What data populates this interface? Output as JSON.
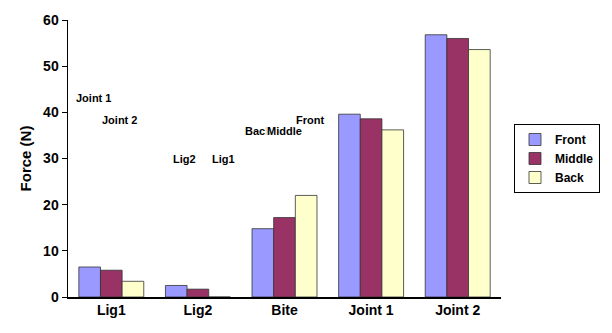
{
  "chart_data": {
    "type": "bar",
    "y_label": "Force (N)",
    "categories": [
      "Lig1",
      "Lig2",
      "Bite",
      "Joint 1",
      "Joint 2"
    ],
    "series": [
      {
        "name": "Front",
        "color": "#9999ff",
        "values": [
          6.5,
          2.5,
          14.8,
          39.6,
          56.8
        ]
      },
      {
        "name": "Middle",
        "color": "#993366",
        "values": [
          5.8,
          1.7,
          17.2,
          38.6,
          56.0
        ]
      },
      {
        "name": "Back",
        "color": "#ffffcc",
        "values": [
          3.4,
          0,
          22.0,
          36.2,
          53.6
        ]
      }
    ],
    "ylim": [
      0,
      60
    ],
    "yticks": [
      0,
      10,
      20,
      30,
      40,
      50,
      60
    ],
    "grid": false,
    "legend": "right",
    "annotations": [
      "Joint 1",
      "Joint 2",
      "Lig2",
      "Lig1",
      "Back",
      "Middle",
      "Front"
    ]
  }
}
